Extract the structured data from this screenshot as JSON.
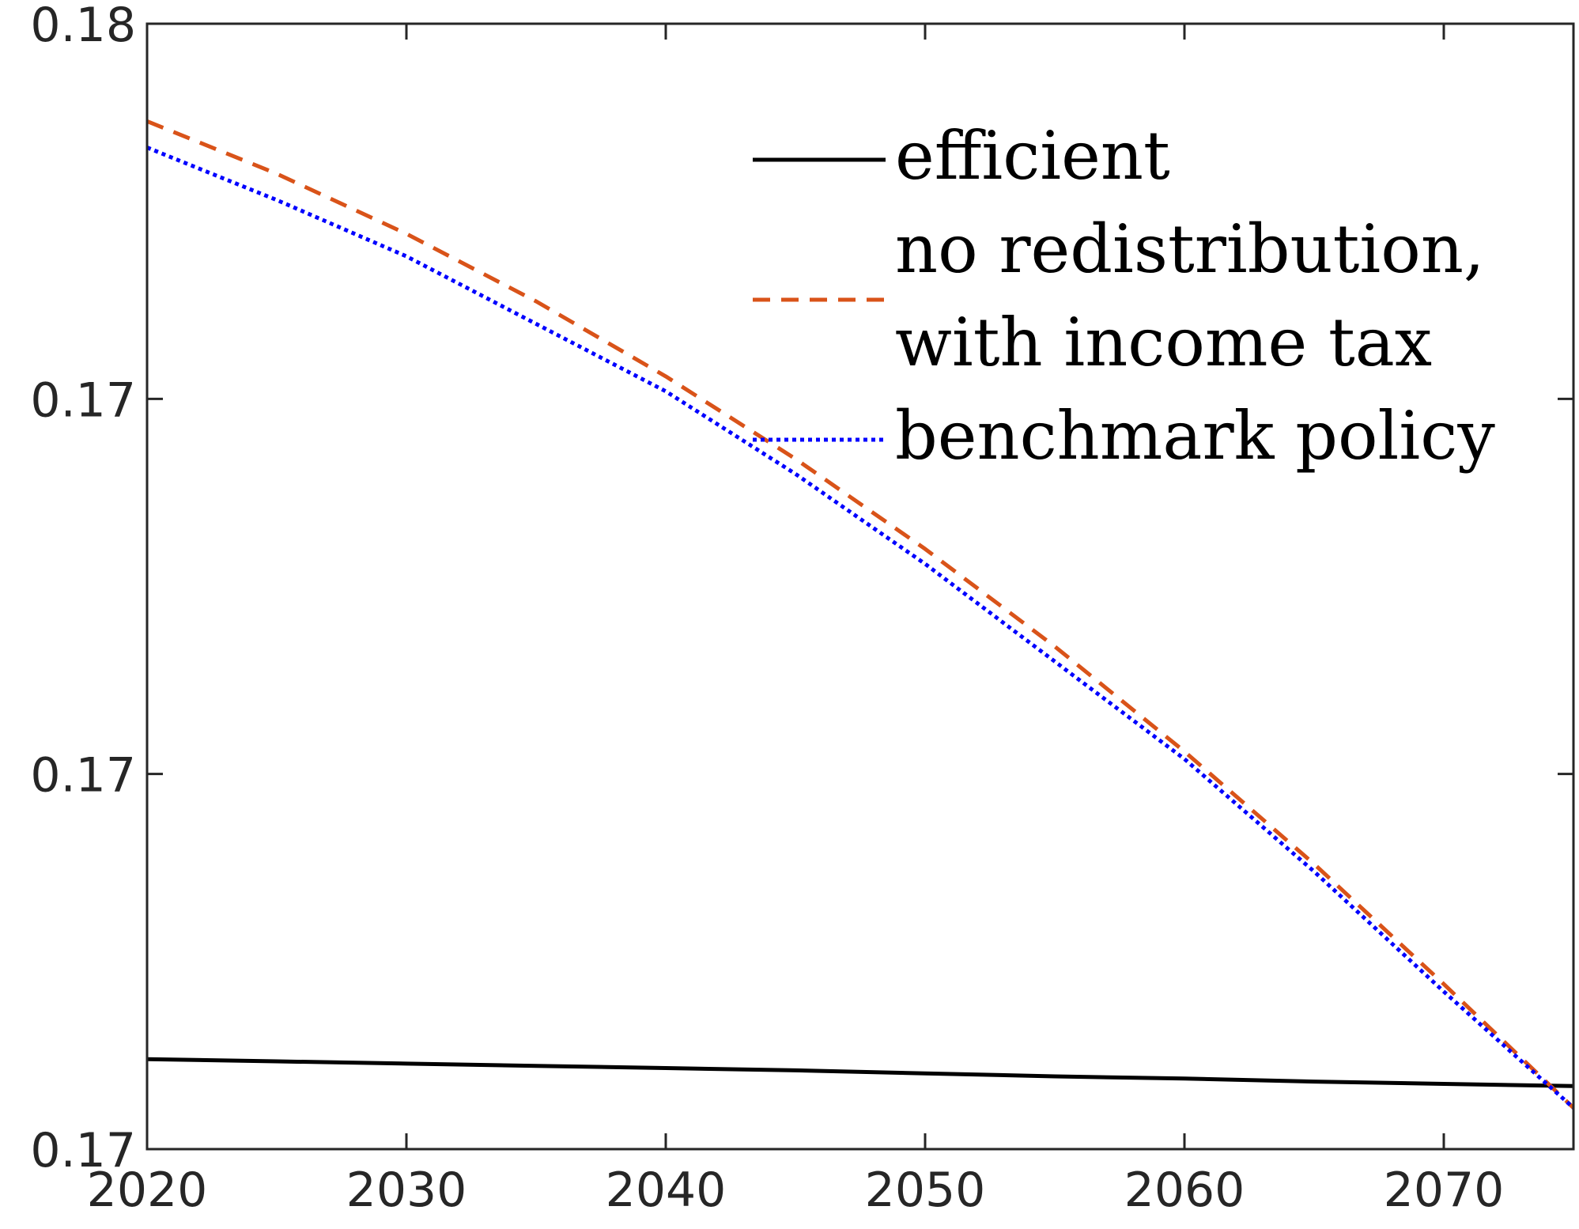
{
  "chart_data": {
    "type": "line",
    "title": "",
    "xlabel": "",
    "ylabel": "",
    "xlim": [
      2020,
      2075
    ],
    "ylim": [
      0.165,
      0.18
    ],
    "grid": false,
    "x_ticks": [
      2020,
      2030,
      2040,
      2050,
      2060,
      2070
    ],
    "x_tick_labels": [
      "2020",
      "2030",
      "2040",
      "2050",
      "2060",
      "2070"
    ],
    "y_ticks": [
      0.165,
      0.17,
      0.175,
      0.18
    ],
    "y_tick_labels": [
      "0.17",
      "0.17",
      "0.17",
      "0.18"
    ],
    "legend": {
      "placement": "top-right",
      "entries": [
        {
          "series": 0,
          "lines": [
            "efficient"
          ]
        },
        {
          "series": 1,
          "lines": [
            "no redistribution,",
            "with income tax"
          ]
        },
        {
          "series": 2,
          "lines": [
            "benchmark policy"
          ]
        }
      ]
    },
    "x": [
      2020,
      2025,
      2030,
      2035,
      2040,
      2045,
      2050,
      2055,
      2060,
      2065,
      2070,
      2075
    ],
    "series": [
      {
        "name": "efficient",
        "color": "#000000",
        "style": "solid",
        "values": [
          0.1662,
          0.16617,
          0.16614,
          0.16611,
          0.16608,
          0.16605,
          0.16601,
          0.16597,
          0.16594,
          0.1659,
          0.16587,
          0.16584
        ]
      },
      {
        "name": "no redistribution, with income tax",
        "color": "#D95319",
        "style": "dashed",
        "values": [
          0.1787,
          0.178,
          0.1772,
          0.1763,
          0.1753,
          0.1742,
          0.173,
          0.1717,
          0.1703,
          0.1688,
          0.1672,
          0.16555
        ]
      },
      {
        "name": "benchmark policy",
        "color": "#0000FF",
        "style": "dotted",
        "values": [
          0.17835,
          0.17765,
          0.1769,
          0.176,
          0.1751,
          0.174,
          0.1728,
          0.1715,
          0.1702,
          0.1687,
          0.1671,
          0.16555
        ]
      }
    ]
  }
}
